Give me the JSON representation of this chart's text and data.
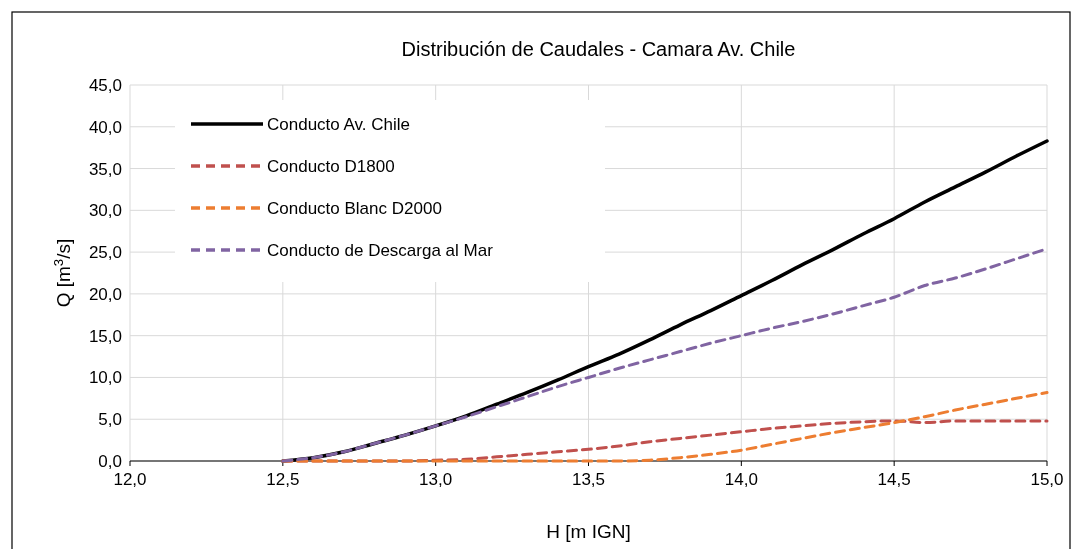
{
  "chart_data": {
    "type": "line",
    "title": "Distribución de Caudales - Camara Av. Chile",
    "xlabel": "H [m IGN]",
    "ylabel": "Q [m$^{3}$/s]",
    "x": [
      12.5,
      12.6,
      12.7,
      12.8,
      12.9,
      13.0,
      13.1,
      13.2,
      13.3,
      13.4,
      13.5,
      13.6,
      13.7,
      13.8,
      13.9,
      14.0,
      14.1,
      14.2,
      14.3,
      14.4,
      14.5,
      14.6,
      14.7,
      14.8,
      14.9,
      15.0
    ],
    "series": [
      {
        "name": "Conducto Av. Chile",
        "color": "#000000",
        "line_style": "solid",
        "values": [
          0,
          0.4,
          1.1,
          2.1,
          3.1,
          4.2,
          5.4,
          6.8,
          8.2,
          9.7,
          11.3,
          12.8,
          14.5,
          16.3,
          18.0,
          19.8,
          21.6,
          23.5,
          25.3,
          27.2,
          29.0,
          31.0,
          32.8,
          34.6,
          36.5,
          38.3
        ]
      },
      {
        "name": "Conducto D1800",
        "color": "#c0504d",
        "line_style": "dashed",
        "values": [
          0,
          0,
          0,
          0,
          0,
          0.1,
          0.2,
          0.5,
          0.8,
          1.1,
          1.4,
          1.8,
          2.3,
          2.7,
          3.1,
          3.5,
          3.9,
          4.2,
          4.5,
          4.7,
          4.8,
          4.6,
          4.8,
          4.8,
          4.8,
          4.8
        ]
      },
      {
        "name": "Conducto Blanc D2000",
        "color": "#ed7d31",
        "line_style": "dashed",
        "values": [
          0,
          0,
          0,
          0,
          0,
          0,
          0,
          0,
          0,
          0,
          0,
          0,
          0.1,
          0.4,
          0.8,
          1.3,
          2.0,
          2.7,
          3.4,
          4.0,
          4.6,
          5.3,
          6.1,
          6.8,
          7.5,
          8.2
        ]
      },
      {
        "name": "Conducto de Descarga al Mar",
        "color": "#8064a2",
        "line_style": "dashed",
        "values": [
          0,
          0.4,
          1.1,
          2.1,
          3.1,
          4.2,
          5.3,
          6.5,
          7.7,
          8.9,
          10.0,
          11.1,
          12.1,
          13.1,
          14.1,
          15.0,
          15.9,
          16.7,
          17.6,
          18.6,
          19.6,
          21.0,
          21.9,
          23.0,
          24.2,
          25.4
        ]
      }
    ],
    "xlim": [
      12.0,
      15.0
    ],
    "xticks": [
      {
        "value": 12.0,
        "label": "12,0"
      },
      {
        "value": 12.5,
        "label": "12,5"
      },
      {
        "value": 13.0,
        "label": "13,0"
      },
      {
        "value": 13.5,
        "label": "13,5"
      },
      {
        "value": 14.0,
        "label": "14,0"
      },
      {
        "value": 14.5,
        "label": "14,5"
      },
      {
        "value": 15.0,
        "label": "15,0"
      }
    ],
    "ylim": [
      0,
      45
    ],
    "yticks": [
      {
        "value": 0,
        "label": "0,0"
      },
      {
        "value": 5,
        "label": "5,0"
      },
      {
        "value": 10,
        "label": "10,0"
      },
      {
        "value": 15,
        "label": "15,0"
      },
      {
        "value": 20,
        "label": "20,0"
      },
      {
        "value": 25,
        "label": "25,0"
      },
      {
        "value": 30,
        "label": "30,0"
      },
      {
        "value": 35,
        "label": "35,0"
      },
      {
        "value": 40,
        "label": "40,0"
      },
      {
        "value": 45,
        "label": "45,0"
      }
    ],
    "grid": true,
    "legend": "top left"
  }
}
